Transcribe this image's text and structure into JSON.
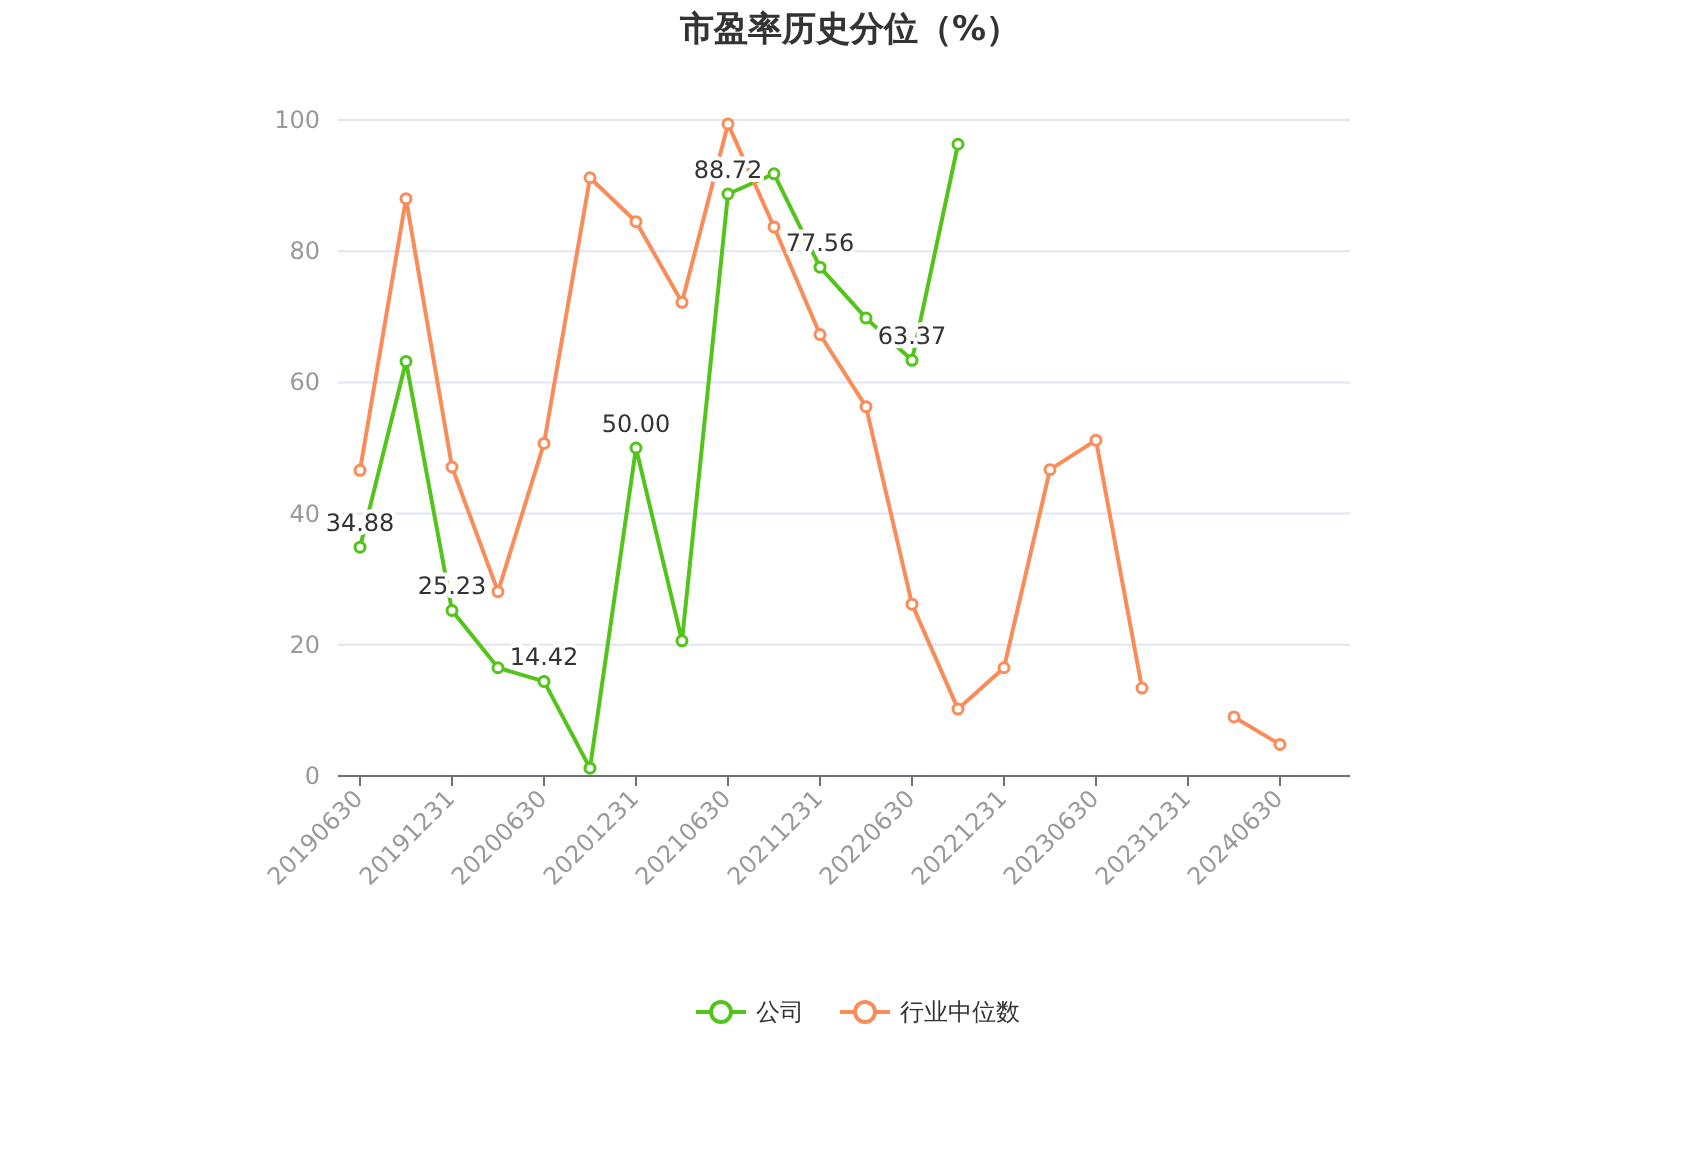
{
  "chart_data": {
    "type": "line",
    "title": "市盈率历史分位（%）",
    "categories": [
      "20190630",
      null,
      "20191231",
      null,
      "20200630",
      null,
      "20201231",
      null,
      "20210630",
      null,
      "20211231",
      null,
      "20220630",
      null,
      "20221231",
      null,
      "20230630",
      null,
      "20231231",
      null,
      "20240630",
      null
    ],
    "series": [
      {
        "name": "公司",
        "color": "#52c41a",
        "values": [
          34.88,
          63.2,
          25.23,
          16.5,
          14.42,
          1.2,
          50.0,
          20.6,
          88.72,
          91.8,
          77.56,
          69.8,
          63.37,
          96.3,
          null,
          null,
          null,
          null,
          null,
          null,
          null,
          null
        ],
        "value_labels": [
          "34.88",
          null,
          "25.23",
          null,
          "14.42",
          null,
          "50.00",
          null,
          "88.72",
          null,
          "77.56",
          null,
          "63.37",
          null,
          null,
          null,
          null,
          null,
          null,
          null,
          null,
          null
        ]
      },
      {
        "name": "行业中位数",
        "color": "#fa8c5a",
        "values": [
          46.6,
          88.0,
          47.1,
          28.1,
          50.7,
          91.2,
          84.5,
          72.2,
          99.4,
          83.7,
          67.3,
          56.3,
          26.2,
          10.2,
          16.5,
          46.7,
          51.2,
          13.4,
          null,
          9.0,
          4.8,
          null
        ]
      }
    ],
    "ylim": [
      0,
      100
    ],
    "yticks": [
      0,
      20,
      40,
      60,
      80,
      100
    ],
    "grid": "y",
    "legend": "bottom",
    "marker": "circle"
  }
}
